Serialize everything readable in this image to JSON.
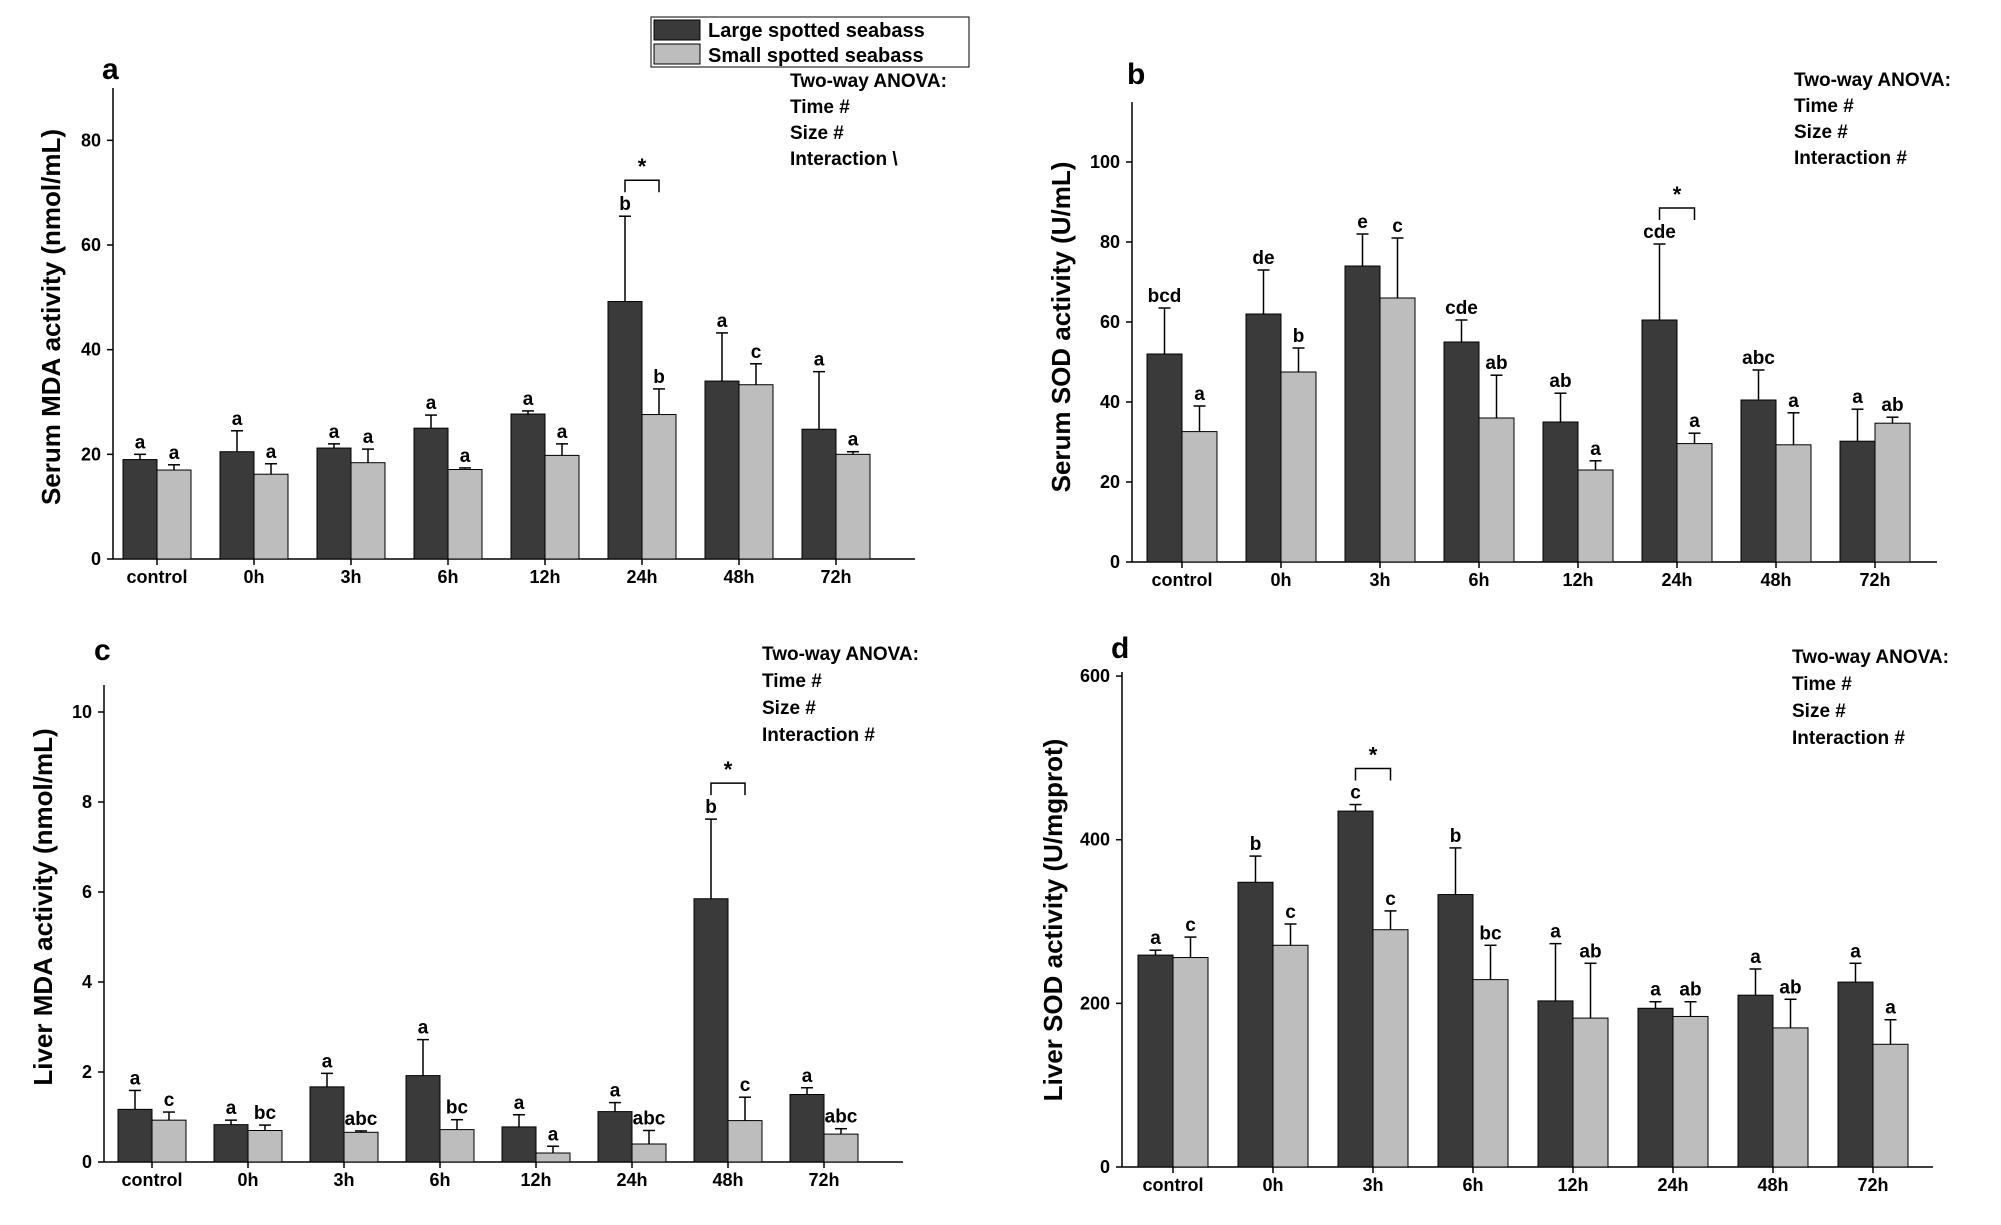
{
  "legend": [
    {
      "name": "Large spotted seabass",
      "color": "#3a3a3a"
    },
    {
      "name": "Small spotted seabass",
      "color": "#bdbdbd"
    }
  ],
  "chart_data": [
    {
      "panel": "a",
      "type": "bar",
      "ylabel": "Serum MDA activity (nmol/mL)",
      "ylim": [
        0,
        90
      ],
      "yticks": [
        0,
        20,
        40,
        60,
        80
      ],
      "categories": [
        "control",
        "0h",
        "3h",
        "6h",
        "12h",
        "24h",
        "48h",
        "72h"
      ],
      "series": [
        {
          "name": "Large spotted seabass",
          "values": [
            19,
            20.5,
            21.2,
            25,
            27.7,
            49.2,
            34,
            24.8
          ],
          "errors": [
            1,
            4,
            0.8,
            2.5,
            0.6,
            16.3,
            9.2,
            11
          ],
          "letters": [
            "a",
            "a",
            "a",
            "a",
            "a",
            "b",
            "a",
            "a"
          ]
        },
        {
          "name": "Small spotted seabass",
          "values": [
            17,
            16.2,
            18.4,
            17.1,
            19.8,
            27.6,
            33.3,
            20
          ],
          "errors": [
            1,
            2,
            2.6,
            0.3,
            2.2,
            4.9,
            4,
            0.5
          ],
          "letters": [
            "a",
            "a",
            "a",
            "a",
            "a",
            "b",
            "c",
            "a"
          ]
        }
      ],
      "significance": {
        "category": "24h",
        "label": "*"
      },
      "anova": [
        "Two-way ANOVA:",
        "Time  #",
        "Size  #",
        "Interaction  \\"
      ]
    },
    {
      "panel": "b",
      "type": "bar",
      "ylabel": "Serum SOD activity (U/mL)",
      "ylim": [
        0,
        115
      ],
      "yticks": [
        0,
        20,
        40,
        60,
        80,
        100
      ],
      "categories": [
        "control",
        "0h",
        "3h",
        "6h",
        "12h",
        "24h",
        "48h",
        "72h"
      ],
      "series": [
        {
          "name": "Large spotted seabass",
          "values": [
            52,
            62,
            74,
            55,
            35,
            60.5,
            40.5,
            30.2
          ],
          "errors": [
            11.5,
            11,
            8,
            5.5,
            7.2,
            19,
            7.5,
            8
          ],
          "letters": [
            "bcd",
            "de",
            "e",
            "cde",
            "ab",
            "cde",
            "abc",
            "a"
          ]
        },
        {
          "name": "Small spotted seabass",
          "values": [
            32.6,
            47.5,
            66,
            36,
            23,
            29.6,
            29.3,
            34.7
          ],
          "errors": [
            6.4,
            6,
            15,
            10.7,
            2.3,
            2.6,
            8,
            1.5
          ],
          "letters": [
            "a",
            "b",
            "c",
            "ab",
            "a",
            "a",
            "a",
            "ab"
          ]
        }
      ],
      "significance": {
        "category": "24h",
        "label": "*"
      },
      "anova": [
        "Two-way ANOVA:",
        "Time #",
        "Size #",
        "Interaction #"
      ]
    },
    {
      "panel": "c",
      "type": "bar",
      "ylabel": "Liver MDA activity (nmol/mL)",
      "ylim": [
        0,
        10.6
      ],
      "yticks": [
        0,
        2,
        4,
        6,
        8,
        10
      ],
      "categories": [
        "control",
        "0h",
        "3h",
        "6h",
        "12h",
        "24h",
        "48h",
        "72h"
      ],
      "series": [
        {
          "name": "Large spotted seabass",
          "values": [
            1.17,
            0.83,
            1.67,
            1.92,
            0.78,
            1.12,
            5.85,
            1.5
          ],
          "errors": [
            0.42,
            0.1,
            0.3,
            0.8,
            0.27,
            0.2,
            1.77,
            0.15
          ],
          "letters": [
            "a",
            "a",
            "a",
            "a",
            "a",
            "a",
            "b",
            "a"
          ]
        },
        {
          "name": "Small spotted seabass",
          "values": [
            0.93,
            0.7,
            0.66,
            0.72,
            0.2,
            0.4,
            0.92,
            0.62
          ],
          "errors": [
            0.18,
            0.12,
            0.03,
            0.22,
            0.15,
            0.3,
            0.52,
            0.12
          ],
          "letters": [
            "c",
            "bc",
            "abc",
            "bc",
            "a",
            "abc",
            "c",
            "abc"
          ]
        }
      ],
      "significance": {
        "category": "48h",
        "label": "*"
      },
      "anova": [
        "Two-way ANOVA:",
        "Time #",
        "Size #",
        "Interaction #"
      ]
    },
    {
      "panel": "d",
      "type": "bar",
      "ylabel": "Liver SOD activity (U/mgprot)",
      "ylim": [
        0,
        605
      ],
      "yticks": [
        0,
        200,
        400,
        600
      ],
      "categories": [
        "control",
        "0h",
        "3h",
        "6h",
        "12h",
        "24h",
        "48h",
        "72h"
      ],
      "series": [
        {
          "name": "Large spotted seabass",
          "values": [
            259,
            348,
            435,
            333,
            203,
            194,
            210,
            226
          ],
          "errors": [
            6,
            32,
            8,
            57,
            70,
            8,
            32,
            23
          ],
          "letters": [
            "a",
            "b",
            "c",
            "b",
            "a",
            "a",
            "a",
            "a"
          ]
        },
        {
          "name": "Small spotted seabass",
          "values": [
            256,
            271,
            290,
            229,
            182,
            184,
            170,
            150
          ],
          "errors": [
            25,
            26,
            23,
            42,
            67,
            18,
            35,
            30
          ],
          "letters": [
            "c",
            "c",
            "c",
            "bc",
            "ab",
            "ab",
            "ab",
            "a"
          ]
        }
      ],
      "significance": {
        "category": "3h",
        "label": "*"
      },
      "anova": [
        "Two-way ANOVA:",
        "Time #",
        "Size #",
        "Interaction #"
      ]
    }
  ]
}
